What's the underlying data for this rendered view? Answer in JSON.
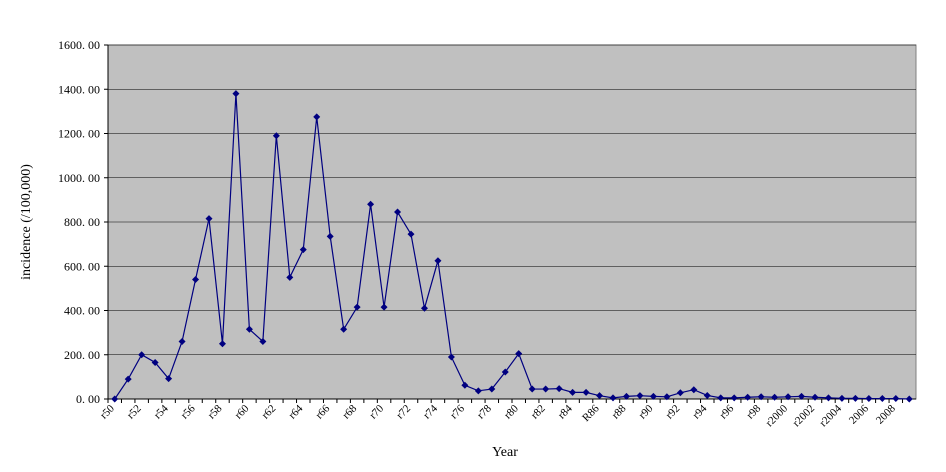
{
  "chart_data": {
    "type": "line",
    "x_label": "Year",
    "y_label": "incidence (/100,000)",
    "categories": [
      "r50",
      null,
      "r52",
      null,
      "r54",
      null,
      "r56",
      null,
      "r58",
      null,
      "r60",
      null,
      "r62",
      null,
      "r64",
      null,
      "r66",
      null,
      "r68",
      null,
      "r70",
      null,
      "r72",
      null,
      "r74",
      null,
      "r76",
      null,
      "r78",
      null,
      "r80",
      null,
      "r82",
      null,
      "r84",
      null,
      "R86",
      null,
      "r88",
      null,
      "r90",
      null,
      "r92",
      null,
      "r94",
      null,
      "r96",
      null,
      "r98",
      null,
      "r2000",
      null,
      "r2002",
      null,
      "r2004",
      null,
      "2006",
      null,
      "2008",
      null
    ],
    "series": [
      {
        "color": "#000080",
        "values": [
          0,
          90,
          200,
          165,
          92,
          260,
          540,
          815,
          250,
          1380,
          315,
          260,
          1190,
          550,
          675,
          1275,
          735,
          315,
          415,
          880,
          415,
          845,
          745,
          410,
          625,
          190,
          62,
          37,
          45,
          122,
          205,
          45,
          45,
          47,
          30,
          30,
          15,
          5,
          12,
          15,
          12,
          10,
          28,
          42,
          16,
          5,
          5,
          8,
          10,
          8,
          10,
          12,
          8,
          5,
          3,
          3,
          2,
          2,
          2,
          0
        ]
      }
    ],
    "ylim": [
      0,
      1600
    ],
    "yticks": [
      {
        "value": 0,
        "label": "0. 00"
      },
      {
        "value": 200,
        "label": "200. 00"
      },
      {
        "value": 400,
        "label": "400. 00"
      },
      {
        "value": 600,
        "label": "600. 00"
      },
      {
        "value": 800,
        "label": "800. 00"
      },
      {
        "value": 1000,
        "label": "1000. 00"
      },
      {
        "value": 1200,
        "label": "1200. 00"
      },
      {
        "value": 1400,
        "label": "1400. 00"
      },
      {
        "value": 1600,
        "label": "1600. 00"
      }
    ],
    "grid": true
  }
}
